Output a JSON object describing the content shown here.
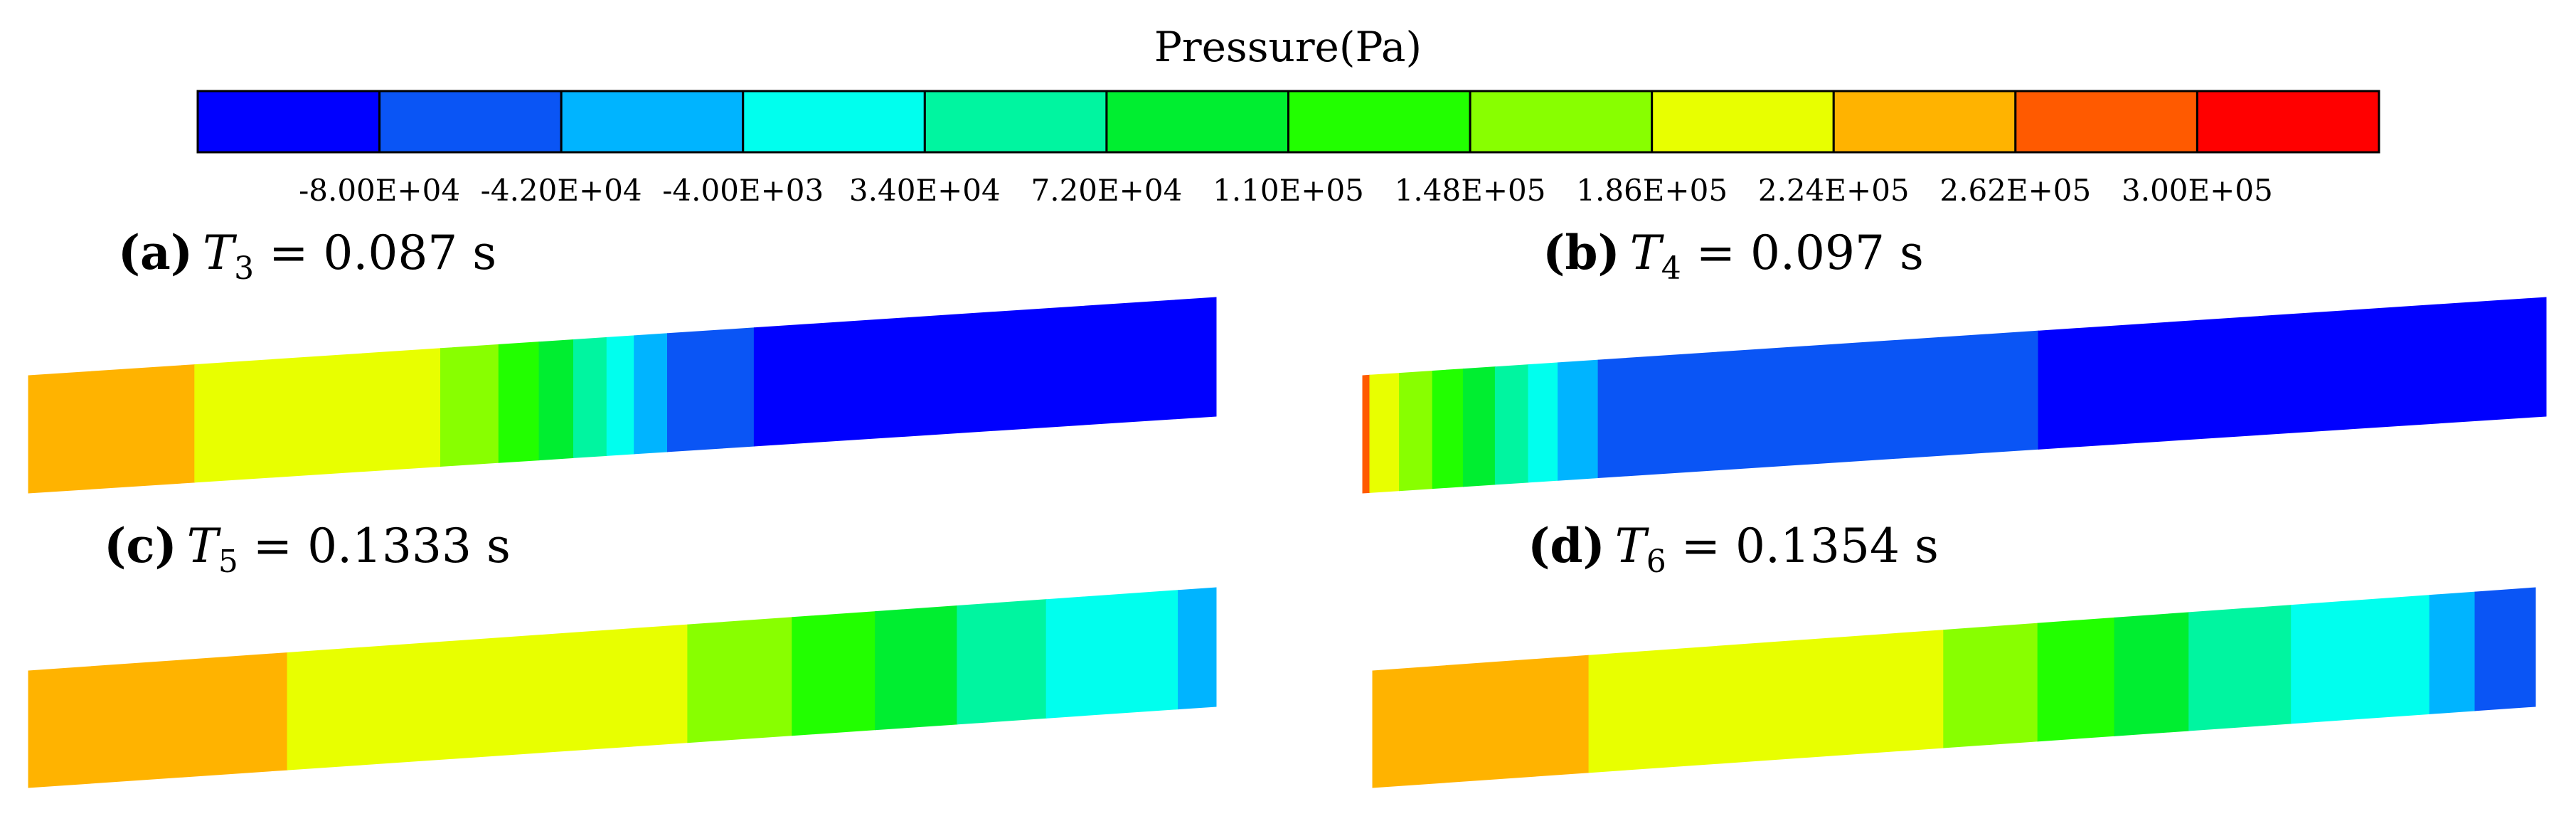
{
  "colorbar": {
    "title": "Pressure(Pa)",
    "colors": [
      "#0000ff",
      "#0a55f5",
      "#00b4ff",
      "#00ffee",
      "#00f5a0",
      "#00ee30",
      "#22ff00",
      "#88ff00",
      "#e8ff00",
      "#ffb300",
      "#ff5a00",
      "#ff0000"
    ],
    "ticks": [
      "-8.00E+04",
      "-4.20E+04",
      "-4.00E+03",
      "3.40E+04",
      "7.20E+04",
      "1.10E+05",
      "1.48E+05",
      "1.86E+05",
      "2.24E+05",
      "2.62E+05",
      "3.00E+05"
    ]
  },
  "panels": [
    {
      "letter": "(a)",
      "t_sub": "3",
      "eq": " = 0.087 s",
      "bands": [
        {
          "to": 0.14,
          "color": "#ffb300"
        },
        {
          "to": 0.347,
          "color": "#e8ff00"
        },
        {
          "to": 0.396,
          "color": "#88ff00"
        },
        {
          "to": 0.43,
          "color": "#22ff00"
        },
        {
          "to": 0.459,
          "color": "#00ee30"
        },
        {
          "to": 0.487,
          "color": "#00f5a0"
        },
        {
          "to": 0.51,
          "color": "#00ffee"
        },
        {
          "to": 0.538,
          "color": "#00b4ff"
        },
        {
          "to": 0.611,
          "color": "#0a55f5"
        },
        {
          "to": 1.0,
          "color": "#0000ff"
        }
      ]
    },
    {
      "letter": "(b)",
      "t_sub": "4",
      "eq": " = 0.097 s",
      "bands": [
        {
          "to": 0.006,
          "color": "#ff5a00"
        },
        {
          "to": 0.031,
          "color": "#e8ff00"
        },
        {
          "to": 0.059,
          "color": "#88ff00"
        },
        {
          "to": 0.085,
          "color": "#22ff00"
        },
        {
          "to": 0.112,
          "color": "#00ee30"
        },
        {
          "to": 0.14,
          "color": "#00f5a0"
        },
        {
          "to": 0.165,
          "color": "#00ffee"
        },
        {
          "to": 0.199,
          "color": "#00b4ff"
        },
        {
          "to": 0.571,
          "color": "#0a55f5"
        },
        {
          "to": 1.0,
          "color": "#0000ff"
        }
      ]
    },
    {
      "letter": "(c)",
      "t_sub": "5",
      "eq": " = 0.1333 s",
      "bands": [
        {
          "to": 0.218,
          "color": "#ffb300"
        },
        {
          "to": 0.555,
          "color": "#e8ff00"
        },
        {
          "to": 0.643,
          "color": "#88ff00"
        },
        {
          "to": 0.713,
          "color": "#22ff00"
        },
        {
          "to": 0.782,
          "color": "#00ee30"
        },
        {
          "to": 0.857,
          "color": "#00f5a0"
        },
        {
          "to": 0.968,
          "color": "#00ffee"
        },
        {
          "to": 1.0,
          "color": "#00b4ff"
        }
      ]
    },
    {
      "letter": "(d)",
      "t_sub": "6",
      "eq": " = 0.1354 s",
      "bands": [
        {
          "to": 0.186,
          "color": "#ffb300"
        },
        {
          "to": 0.491,
          "color": "#e8ff00"
        },
        {
          "to": 0.572,
          "color": "#88ff00"
        },
        {
          "to": 0.638,
          "color": "#22ff00"
        },
        {
          "to": 0.702,
          "color": "#00ee30"
        },
        {
          "to": 0.79,
          "color": "#00f5a0"
        },
        {
          "to": 0.909,
          "color": "#00ffee"
        },
        {
          "to": 0.948,
          "color": "#00b4ff"
        },
        {
          "to": 1.0,
          "color": "#0a55f5"
        }
      ]
    }
  ]
}
